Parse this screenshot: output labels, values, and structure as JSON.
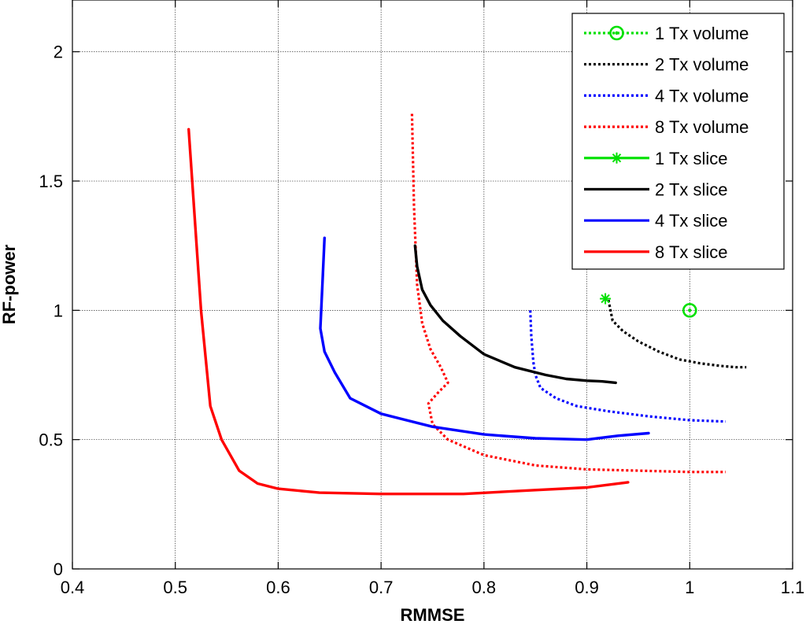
{
  "chart_data": {
    "type": "line",
    "title": "",
    "xlabel": "RMMSE",
    "ylabel": "RF-power",
    "xlim": [
      0.4,
      1.1
    ],
    "ylim": [
      0,
      2.2
    ],
    "xticks": [
      0.4,
      0.5,
      0.6,
      0.7,
      0.8,
      0.9,
      1,
      1.1
    ],
    "yticks": [
      0,
      0.5,
      1,
      1.5,
      2
    ],
    "xtick_labels": [
      "0.4",
      "0.5",
      "0.6",
      "0.7",
      "0.8",
      "0.9",
      "1",
      "1.1"
    ],
    "ytick_labels": [
      "0",
      "0.5",
      "1",
      "1.5",
      "2"
    ],
    "grid": true,
    "legend_position": "top-right",
    "series": [
      {
        "name": "1 Tx volume",
        "color": "#00e000",
        "style": "dotted",
        "marker": "circle",
        "x": [
          1.0
        ],
        "y": [
          1.0
        ]
      },
      {
        "name": "2 Tx volume",
        "color": "#000000",
        "style": "dotted",
        "marker": "none",
        "x": [
          0.921,
          0.925,
          0.935,
          0.95,
          0.97,
          0.99,
          1.01,
          1.03,
          1.045,
          1.055
        ],
        "y": [
          1.04,
          0.96,
          0.92,
          0.88,
          0.84,
          0.81,
          0.795,
          0.785,
          0.78,
          0.78
        ]
      },
      {
        "name": "4 Tx volume",
        "color": "#0000ff",
        "style": "dotted",
        "marker": "none",
        "x": [
          0.845,
          0.846,
          0.848,
          0.85,
          0.855,
          0.87,
          0.89,
          0.92,
          0.96,
          1.0,
          1.035
        ],
        "y": [
          1.0,
          0.9,
          0.8,
          0.75,
          0.7,
          0.66,
          0.63,
          0.61,
          0.59,
          0.575,
          0.57
        ]
      },
      {
        "name": "8 Tx volume",
        "color": "#ff0000",
        "style": "dotted",
        "marker": "none",
        "x": [
          0.73,
          0.732,
          0.735,
          0.74,
          0.748,
          0.758,
          0.765,
          0.755,
          0.746,
          0.75,
          0.765,
          0.8,
          0.85,
          0.9,
          0.95,
          1.0,
          1.035
        ],
        "y": [
          1.76,
          1.4,
          1.1,
          0.95,
          0.85,
          0.78,
          0.72,
          0.68,
          0.64,
          0.56,
          0.5,
          0.44,
          0.4,
          0.385,
          0.38,
          0.375,
          0.375
        ]
      },
      {
        "name": "1 Tx slice",
        "color": "#00e000",
        "style": "solid",
        "marker": "star",
        "x": [
          0.918
        ],
        "y": [
          1.045
        ]
      },
      {
        "name": "2 Tx slice",
        "color": "#000000",
        "style": "solid",
        "marker": "none",
        "x": [
          0.733,
          0.735,
          0.74,
          0.748,
          0.76,
          0.777,
          0.8,
          0.83,
          0.86,
          0.88,
          0.9,
          0.915,
          0.928
        ],
        "y": [
          1.25,
          1.17,
          1.08,
          1.02,
          0.96,
          0.9,
          0.83,
          0.78,
          0.75,
          0.735,
          0.728,
          0.725,
          0.72
        ]
      },
      {
        "name": "4 Tx slice",
        "color": "#0000ff",
        "style": "solid",
        "marker": "none",
        "x": [
          0.645,
          0.643,
          0.641,
          0.645,
          0.655,
          0.67,
          0.7,
          0.75,
          0.8,
          0.85,
          0.9,
          0.93,
          0.96
        ],
        "y": [
          1.28,
          1.1,
          0.93,
          0.84,
          0.76,
          0.66,
          0.6,
          0.55,
          0.52,
          0.505,
          0.5,
          0.515,
          0.525
        ]
      },
      {
        "name": "8 Tx slice",
        "color": "#ff0000",
        "style": "solid",
        "marker": "none",
        "x": [
          0.513,
          0.525,
          0.534,
          0.545,
          0.562,
          0.58,
          0.6,
          0.64,
          0.7,
          0.78,
          0.85,
          0.9,
          0.94
        ],
        "y": [
          1.7,
          1.0,
          0.63,
          0.5,
          0.38,
          0.33,
          0.31,
          0.295,
          0.29,
          0.29,
          0.305,
          0.315,
          0.335
        ]
      }
    ]
  }
}
